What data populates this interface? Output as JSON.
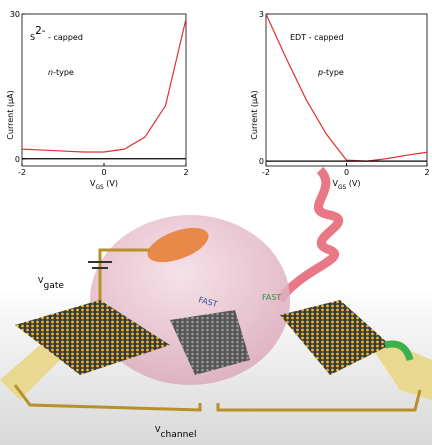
{
  "chart_data": [
    {
      "type": "line",
      "title_parts": [
        {
          "text": "S"
        },
        {
          "text": "2-",
          "sup": true
        },
        {
          "text": " - capped"
        }
      ],
      "subtitle_parts": [
        {
          "text": "n",
          "italic": true
        },
        {
          "text": "-type"
        }
      ],
      "y_label": "Current (μA)",
      "x_label": [
        {
          "text": "V"
        },
        {
          "text": "GS",
          "sub": true
        },
        {
          "text": " (V)"
        }
      ],
      "x": [
        -2,
        -1.5,
        -1,
        -0.5,
        0,
        0.5,
        1,
        1.5,
        2
      ],
      "series": [
        {
          "color": "#e03030",
          "values": [
            2,
            1.8,
            1.6,
            1.4,
            1.4,
            2,
            4.5,
            11,
            29
          ]
        },
        {
          "color": "#000000",
          "values": [
            0,
            0,
            0,
            0,
            0,
            0,
            0,
            0,
            0
          ]
        }
      ],
      "xlim": [
        -2,
        2
      ],
      "xticks": [
        -2,
        0,
        2
      ],
      "ylim": [
        -1.5,
        30
      ],
      "yticks": [
        0,
        30
      ]
    },
    {
      "type": "line",
      "title_parts": [
        {
          "text": "EDT - capped"
        }
      ],
      "subtitle_parts": [
        {
          "text": "p",
          "italic": true
        },
        {
          "text": "-type"
        }
      ],
      "y_label": "Current (μA)",
      "x_label": [
        {
          "text": "V"
        },
        {
          "text": "GS",
          "sub": true
        },
        {
          "text": " (V)"
        }
      ],
      "x": [
        -2,
        -1.5,
        -1,
        -0.5,
        0,
        0.5,
        1,
        1.5,
        2
      ],
      "series": [
        {
          "color": "#e03030",
          "values": [
            3,
            2.1,
            1.25,
            0.55,
            0.02,
            0,
            0.05,
            0.12,
            0.18
          ]
        },
        {
          "color": "#000000",
          "values": [
            0,
            0,
            0,
            0,
            0,
            0,
            0,
            0,
            0
          ]
        }
      ],
      "xlim": [
        -2,
        2
      ],
      "xticks": [
        -2,
        0,
        2
      ],
      "ylim": [
        -0.1,
        3
      ],
      "yticks": [
        0,
        3
      ]
    }
  ],
  "illustration": {
    "gate_label": [
      {
        "text": "V"
      },
      {
        "text": "gate",
        "sub": true
      }
    ],
    "channel_label": [
      {
        "text": "V"
      },
      {
        "text": "channel",
        "sub": true
      }
    ],
    "fast_labels": [
      "FAST",
      "FAST"
    ]
  }
}
